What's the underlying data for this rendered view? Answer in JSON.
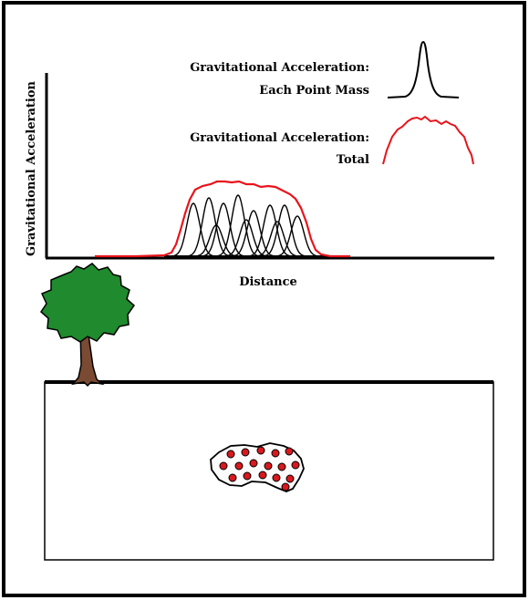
{
  "legend": {
    "point_mass_line1": "Gravitational Acceleration:",
    "point_mass_line2": "Each Point Mass",
    "total_line1": "Gravitational Acceleration:",
    "total_line2": "Total"
  },
  "axes": {
    "y_label": "Gravitational Acceleration",
    "x_label": "Distance"
  },
  "colors": {
    "point_mass_curve": "#000000",
    "total_curve": "#e8141c",
    "tree_foliage": "#1f8a2e",
    "tree_trunk": "#7a4a32",
    "mass_dots": "#d8181e",
    "frame": "#000000"
  },
  "icons": {
    "tree": "tree-icon",
    "buried_mass": "buried-mass-blob"
  }
}
